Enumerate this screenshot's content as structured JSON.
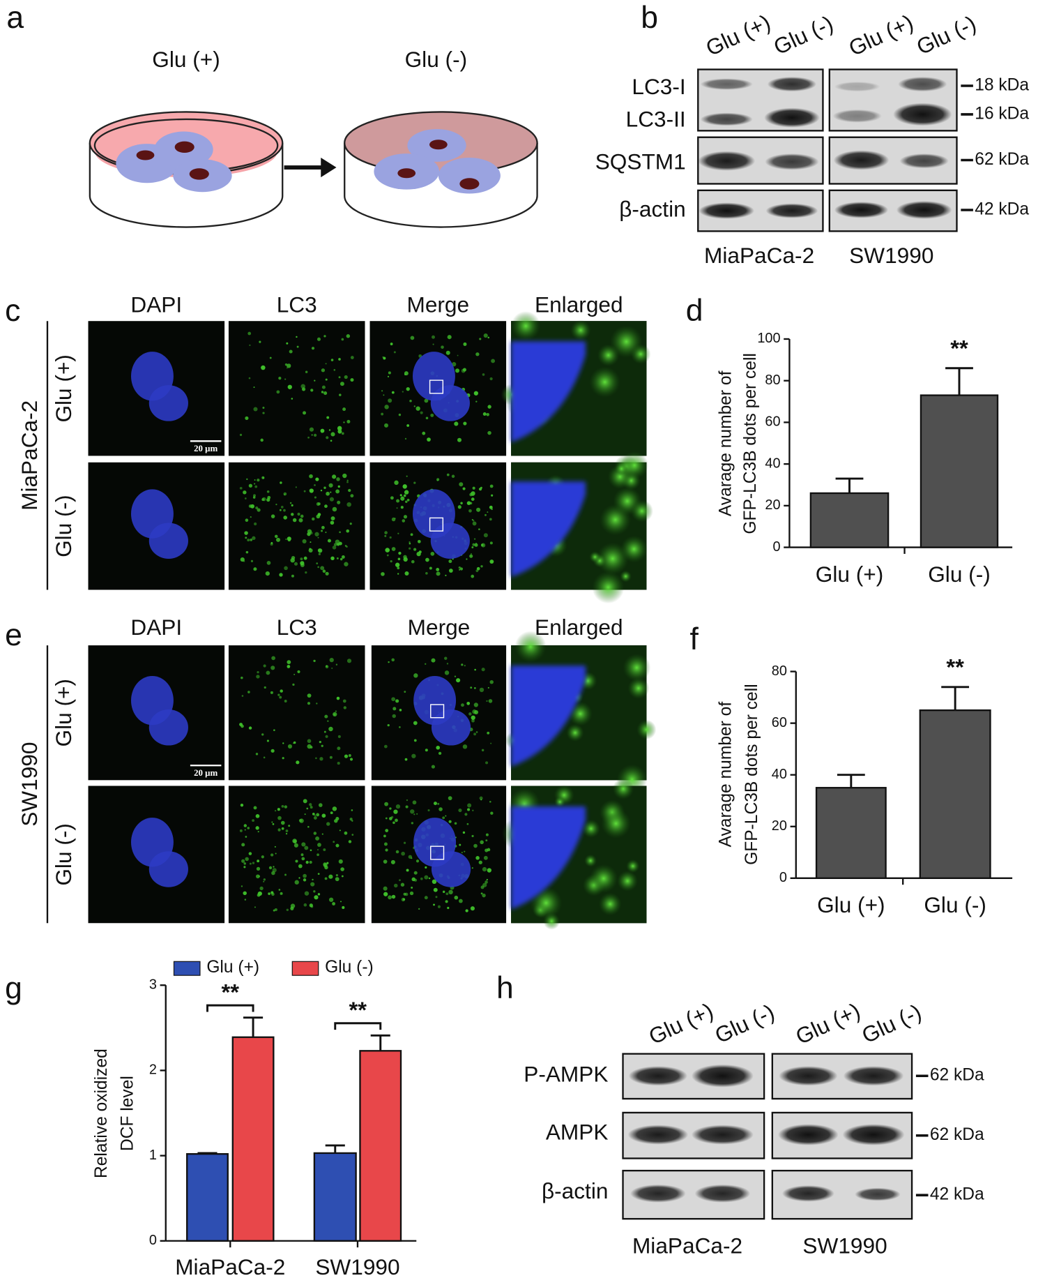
{
  "panels": {
    "a": {
      "label": "a",
      "conditions": [
        "Glu (+)",
        "Glu (-)"
      ]
    },
    "b": {
      "label": "b",
      "lanes": [
        "Glu (+)",
        "Glu (-)",
        "Glu (+)",
        "Glu (-)"
      ],
      "rows": [
        "LC3-I",
        "LC3-II",
        "SQSTM1",
        "β-actin"
      ],
      "sizes": [
        "18 kDa",
        "16 kDa",
        "62 kDa",
        "42 kDa"
      ],
      "cell_lines": [
        "MiaPaCa-2",
        "SW1990"
      ]
    },
    "c": {
      "label": "c",
      "columns": [
        "DAPI",
        "LC3",
        "Merge",
        "Enlarged"
      ],
      "cell_line": "MiaPaCa-2",
      "rows": [
        "Glu (+)",
        "Glu (-)"
      ],
      "scale_bar": "20 μm"
    },
    "e": {
      "label": "e",
      "columns": [
        "DAPI",
        "LC3",
        "Merge",
        "Enlarged"
      ],
      "cell_line": "SW1990",
      "rows": [
        "Glu (+)",
        "Glu (-)"
      ],
      "scale_bar": "20 μm"
    },
    "h": {
      "label": "h",
      "lanes": [
        "Glu (+)",
        "Glu (-)",
        "Glu (+)",
        "Glu (-)"
      ],
      "rows": [
        "P-AMPK",
        "AMPK",
        "β-actin"
      ],
      "sizes": [
        "62 kDa",
        "62 kDa",
        "42 kDa"
      ],
      "cell_lines": [
        "MiaPaCa-2",
        "SW1990"
      ]
    }
  },
  "chart_data": [
    {
      "label": "d",
      "type": "bar",
      "ylabel": [
        "Avarage number of",
        "GFP-LC3B dots per cell"
      ],
      "categories": [
        "Glu (+)",
        "Glu (-)"
      ],
      "values": [
        26,
        73
      ],
      "errors": [
        7,
        13
      ],
      "color": "#505050",
      "significance": "**",
      "ylim": [
        0,
        100
      ],
      "yticks": [
        0,
        20,
        40,
        60,
        80,
        100
      ]
    },
    {
      "label": "f",
      "type": "bar",
      "ylabel": [
        "Avarage number of",
        "GFP-LC3B dots per cell"
      ],
      "categories": [
        "Glu (+)",
        "Glu (-)"
      ],
      "values": [
        35,
        65
      ],
      "errors": [
        5,
        9
      ],
      "color": "#505050",
      "significance": "**",
      "ylim": [
        0,
        80
      ],
      "yticks": [
        0,
        20,
        40,
        60,
        80
      ]
    },
    {
      "label": "g",
      "type": "bar",
      "ylabel": [
        "Relative oxidized",
        "DCF level"
      ],
      "categories": [
        "MiaPaCa-2",
        "SW1990"
      ],
      "series": [
        {
          "name": "Glu (+)",
          "color": "#2e4fb2",
          "values": [
            1.02,
            1.03
          ],
          "errors": [
            0.01,
            0.09
          ]
        },
        {
          "name": "Glu (-)",
          "color": "#e8474a",
          "values": [
            2.39,
            2.23
          ],
          "errors": [
            0.23,
            0.18
          ]
        }
      ],
      "significance": [
        "**",
        "**"
      ],
      "ylim": [
        0,
        3
      ],
      "yticks": [
        0,
        1,
        2,
        3
      ]
    }
  ]
}
